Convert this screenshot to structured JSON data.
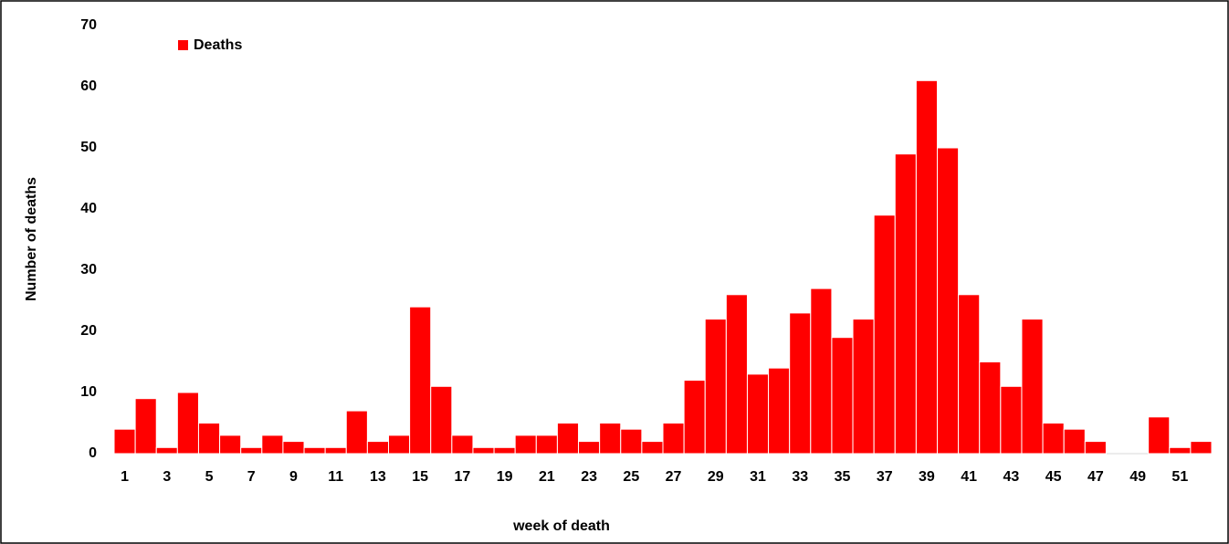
{
  "chart_data": {
    "type": "bar",
    "x_label": "week of death",
    "y_label": "Number of deaths",
    "categories": [
      1,
      null,
      3,
      null,
      5,
      null,
      7,
      null,
      9,
      null,
      11,
      null,
      13,
      null,
      15,
      null,
      17,
      null,
      19,
      null,
      21,
      null,
      23,
      null,
      25,
      null,
      27,
      null,
      29,
      null,
      31,
      null,
      33,
      null,
      35,
      null,
      37,
      null,
      39,
      null,
      41,
      null,
      43,
      null,
      45,
      null,
      47,
      null,
      49,
      null,
      51,
      null
    ],
    "series": [
      {
        "name": "Deaths",
        "color": "#ff0000",
        "values": [
          4,
          9,
          1,
          10,
          5,
          3,
          1,
          3,
          2,
          1,
          1,
          7,
          2,
          3,
          24,
          11,
          3,
          1,
          1,
          3,
          3,
          5,
          2,
          5,
          4,
          2,
          5,
          12,
          22,
          26,
          13,
          14,
          23,
          27,
          19,
          22,
          39,
          49,
          61,
          50,
          26,
          15,
          11,
          22,
          5,
          4,
          2,
          0,
          0,
          6,
          1,
          2
        ]
      }
    ],
    "ylim": [
      0,
      70
    ],
    "yticks": [
      0,
      10,
      20,
      30,
      40,
      50,
      60,
      70
    ],
    "grid": false,
    "legend": "top-left"
  }
}
